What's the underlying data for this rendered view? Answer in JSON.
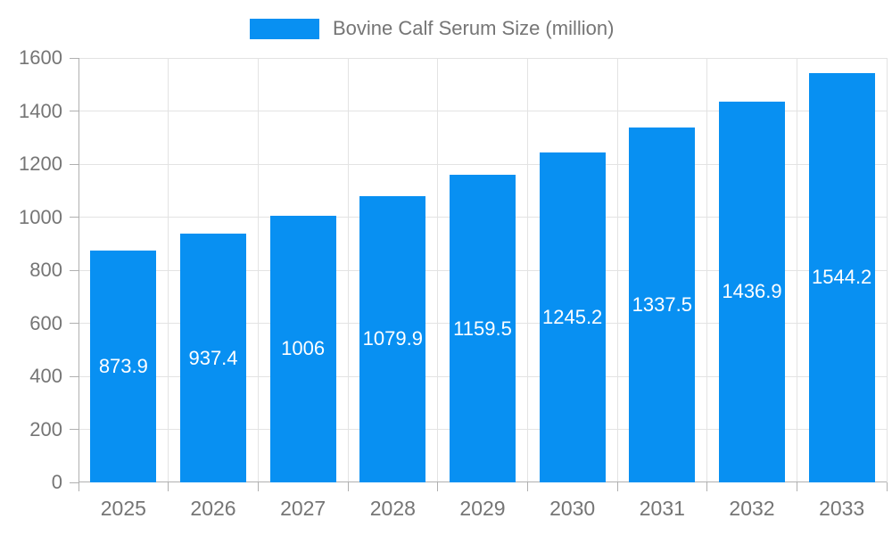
{
  "chart_data": {
    "type": "bar",
    "title": "Bovine Calf Serum Size (million)",
    "categories": [
      "2025",
      "2026",
      "2027",
      "2028",
      "2029",
      "2030",
      "2031",
      "2032",
      "2033"
    ],
    "values": [
      873.9,
      937.4,
      1006,
      1079.9,
      1159.5,
      1245.2,
      1337.5,
      1436.9,
      1544.2
    ],
    "series_name": "Bovine Calf Serum Size (million)",
    "xlabel": "",
    "ylabel": "",
    "ylim": [
      0,
      1600
    ],
    "ytick_step": 200,
    "ytick_labels": [
      "0",
      "200",
      "400",
      "600",
      "800",
      "1000",
      "1200",
      "1400",
      "1600"
    ],
    "grid": true,
    "legend_position": "top-center",
    "value_labels": "inside-center"
  },
  "colors": {
    "bar": "#0890f2",
    "value_label": "#ffffff",
    "axis_label": "#757575",
    "gridline": "#e3e3e3",
    "axis_line": "#b0b0b0",
    "background": "#ffffff"
  }
}
